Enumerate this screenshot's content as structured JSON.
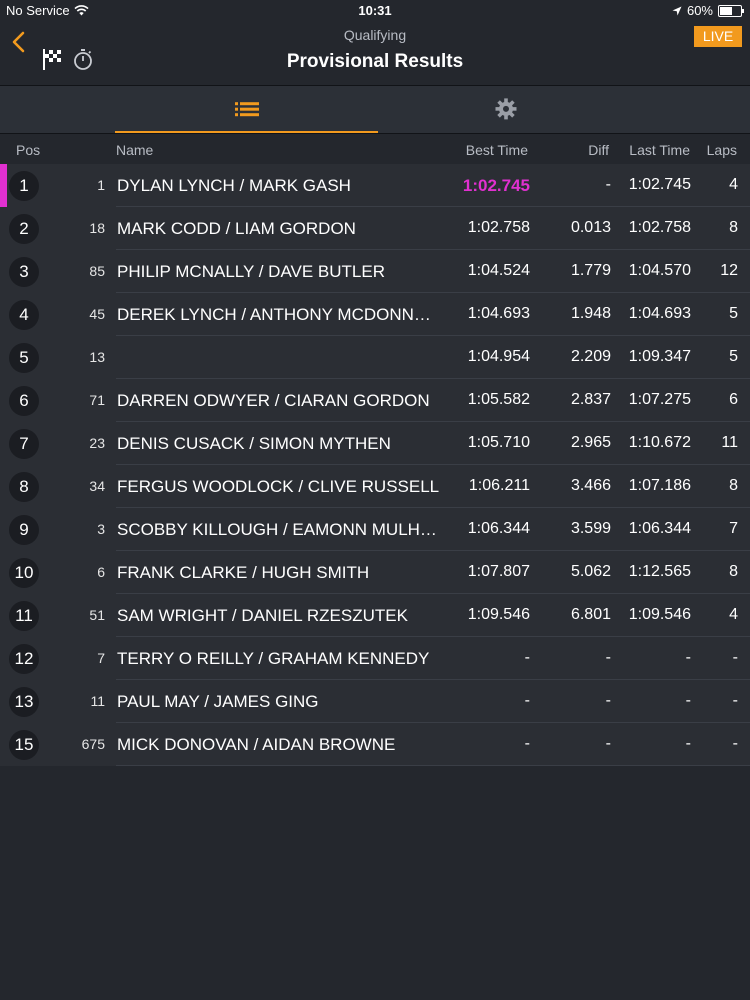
{
  "status_bar": {
    "carrier": "No Service",
    "time": "10:31",
    "battery": "60%",
    "battery_level": 0.6
  },
  "header": {
    "subtitle": "Qualifying",
    "title": "Provisional Results",
    "live_label": "LIVE"
  },
  "tabs": [
    {
      "icon": "list-icon",
      "selected": true
    },
    {
      "icon": "gear-icon",
      "selected": false
    }
  ],
  "columns": {
    "pos": "Pos",
    "name": "Name",
    "best_time": "Best Time",
    "diff": "Diff",
    "last_time": "Last Time",
    "laps": "Laps"
  },
  "colors": {
    "accent": "#f29a1e",
    "fastest": "#e130d0",
    "background": "#24272d",
    "row": "#2b2e34"
  },
  "results": [
    {
      "pos": "1",
      "num": "1",
      "name": "DYLAN LYNCH / MARK GASH",
      "best": "1:02.745",
      "diff": "-",
      "last": "1:02.745",
      "laps": "4",
      "fastest": true
    },
    {
      "pos": "2",
      "num": "18",
      "name": "MARK CODD / LIAM GORDON",
      "best": "1:02.758",
      "diff": "0.013",
      "last": "1:02.758",
      "laps": "8"
    },
    {
      "pos": "3",
      "num": "85",
      "name": "PHILIP MCNALLY / DAVE BUTLER",
      "best": "1:04.524",
      "diff": "1.779",
      "last": "1:04.570",
      "laps": "12"
    },
    {
      "pos": "4",
      "num": "45",
      "name": "DEREK LYNCH / ANTHONY MCDONN…",
      "best": "1:04.693",
      "diff": "1.948",
      "last": "1:04.693",
      "laps": "5"
    },
    {
      "pos": "5",
      "num": "13",
      "name": "",
      "best": "1:04.954",
      "diff": "2.209",
      "last": "1:09.347",
      "laps": "5"
    },
    {
      "pos": "6",
      "num": "71",
      "name": "DARREN ODWYER / CIARAN GORDON",
      "best": "1:05.582",
      "diff": "2.837",
      "last": "1:07.275",
      "laps": "6"
    },
    {
      "pos": "7",
      "num": "23",
      "name": "DENIS CUSACK / SIMON MYTHEN",
      "best": "1:05.710",
      "diff": "2.965",
      "last": "1:10.672",
      "laps": "11"
    },
    {
      "pos": "8",
      "num": "34",
      "name": "FERGUS WOODLOCK / CLIVE RUSSELL",
      "best": "1:06.211",
      "diff": "3.466",
      "last": "1:07.186",
      "laps": "8"
    },
    {
      "pos": "9",
      "num": "3",
      "name": "SCOBBY KILLOUGH / EAMONN MULH…",
      "best": "1:06.344",
      "diff": "3.599",
      "last": "1:06.344",
      "laps": "7"
    },
    {
      "pos": "10",
      "num": "6",
      "name": "FRANK CLARKE / HUGH SMITH",
      "best": "1:07.807",
      "diff": "5.062",
      "last": "1:12.565",
      "laps": "8"
    },
    {
      "pos": "11",
      "num": "51",
      "name": "SAM WRIGHT / DANIEL RZESZUTEK",
      "best": "1:09.546",
      "diff": "6.801",
      "last": "1:09.546",
      "laps": "4"
    },
    {
      "pos": "12",
      "num": "7",
      "name": "TERRY O REILLY / GRAHAM KENNEDY",
      "best": "-",
      "diff": "-",
      "last": "-",
      "laps": "-"
    },
    {
      "pos": "13",
      "num": "11",
      "name": "PAUL MAY / JAMES GING",
      "best": "-",
      "diff": "-",
      "last": "-",
      "laps": "-"
    },
    {
      "pos": "15",
      "num": "675",
      "name": "MICK DONOVAN / AIDAN BROWNE",
      "best": "-",
      "diff": "-",
      "last": "-",
      "laps": "-"
    }
  ]
}
